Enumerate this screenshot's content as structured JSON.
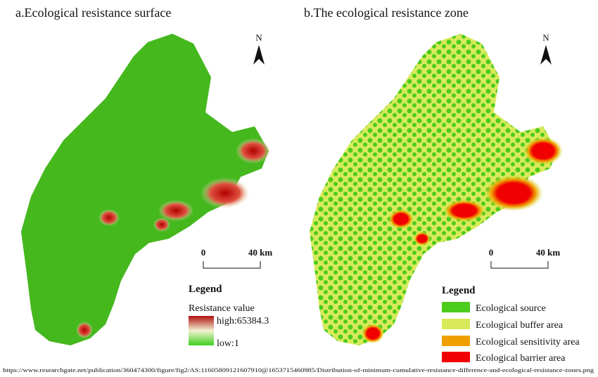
{
  "panels": [
    {
      "title": "a.Ecological resistance surface",
      "north": "N",
      "scale": {
        "start": "0",
        "end": "40 km"
      },
      "legend": {
        "title": "Legend",
        "subtitle": "Resistance value",
        "high": "high:65384.3",
        "low": "low:1"
      }
    },
    {
      "title": "b.The ecological resistance zone",
      "north": "N",
      "scale": {
        "start": "0",
        "end": "40 km"
      },
      "legend": {
        "title": "Legend",
        "items": [
          "Ecological source",
          "Ecological buffer area",
          "Ecological sensitivity area",
          "Ecological barrier area"
        ]
      }
    }
  ],
  "source": "https://www.researchgate.net/publication/360474300/figure/fig2/AS:11605809121607910@1653715460985/Distribution-of-minimum-cumulative-resistance-difference-and-ecological-resistance-zones.png"
}
